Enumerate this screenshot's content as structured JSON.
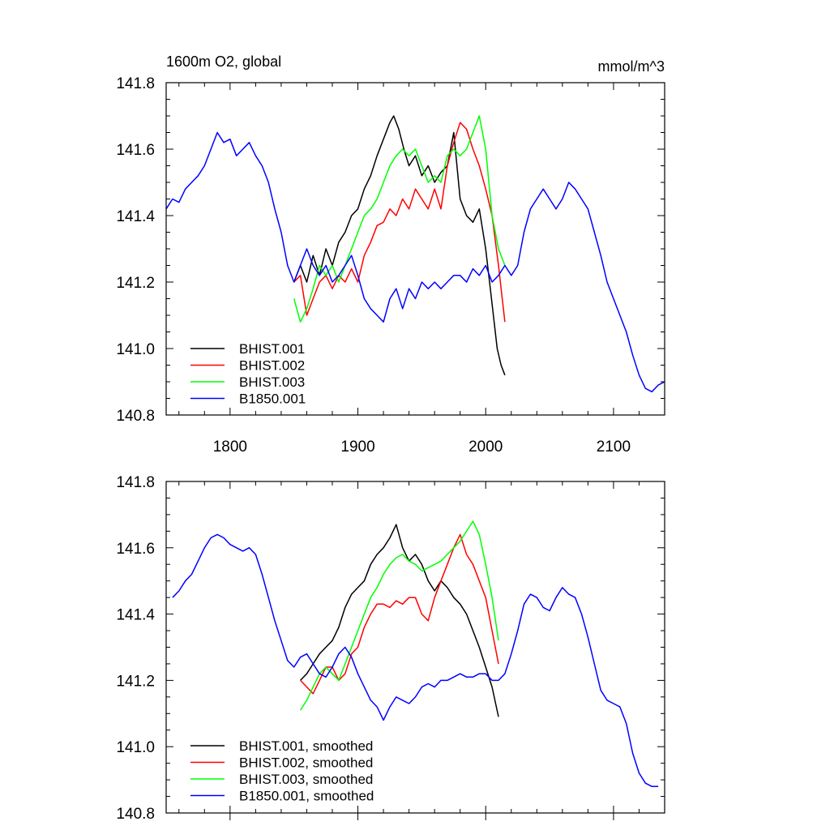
{
  "chart_data": [
    {
      "type": "line",
      "title": "1600m O2, global",
      "units": "mmol/m^3",
      "xlim": [
        1750,
        2140
      ],
      "ylim": [
        140.8,
        141.8
      ],
      "yticks": [
        "141.8",
        "141.6",
        "141.4",
        "141.2",
        "141.0",
        "140.8"
      ],
      "xticks": [
        "1800",
        "1900",
        "2000",
        "2100"
      ],
      "legend_position": "bottom-left",
      "series": [
        {
          "name": "BHIST.001",
          "color": "#000000",
          "x": [
            1850,
            1855,
            1860,
            1865,
            1870,
            1875,
            1880,
            1885,
            1890,
            1895,
            1900,
            1905,
            1910,
            1915,
            1920,
            1925,
            1928,
            1932,
            1936,
            1940,
            1945,
            1950,
            1955,
            1960,
            1965,
            1970,
            1975,
            1980,
            1985,
            1990,
            1995,
            2000,
            2003,
            2006,
            2009,
            2012,
            2015
          ],
          "y": [
            141.2,
            141.25,
            141.2,
            141.28,
            141.22,
            141.3,
            141.25,
            141.32,
            141.35,
            141.4,
            141.42,
            141.48,
            141.52,
            141.58,
            141.63,
            141.68,
            141.7,
            141.66,
            141.6,
            141.55,
            141.58,
            141.52,
            141.55,
            141.5,
            141.53,
            141.55,
            141.65,
            141.45,
            141.4,
            141.38,
            141.42,
            141.3,
            141.2,
            141.1,
            141.0,
            140.95,
            140.92
          ]
        },
        {
          "name": "BHIST.002",
          "color": "#ff0000",
          "x": [
            1850,
            1855,
            1860,
            1865,
            1870,
            1875,
            1880,
            1885,
            1890,
            1895,
            1900,
            1905,
            1910,
            1915,
            1920,
            1925,
            1930,
            1935,
            1940,
            1945,
            1950,
            1955,
            1960,
            1965,
            1970,
            1975,
            1980,
            1985,
            1990,
            1995,
            2000,
            2005,
            2010,
            2015
          ],
          "y": [
            141.2,
            141.22,
            141.1,
            141.15,
            141.2,
            141.22,
            141.18,
            141.22,
            141.2,
            141.24,
            141.2,
            141.28,
            141.32,
            141.37,
            141.38,
            141.42,
            141.4,
            141.45,
            141.42,
            141.48,
            141.45,
            141.42,
            141.48,
            141.42,
            141.55,
            141.62,
            141.68,
            141.66,
            141.6,
            141.55,
            141.48,
            141.4,
            141.25,
            141.08
          ]
        },
        {
          "name": "BHIST.003",
          "color": "#00ff00",
          "x": [
            1850,
            1855,
            1860,
            1865,
            1870,
            1875,
            1880,
            1885,
            1890,
            1895,
            1900,
            1905,
            1910,
            1915,
            1920,
            1925,
            1930,
            1935,
            1940,
            1945,
            1950,
            1955,
            1960,
            1965,
            1970,
            1975,
            1980,
            1985,
            1990,
            1995,
            2000,
            2005,
            2010,
            2015
          ],
          "y": [
            141.15,
            141.08,
            141.12,
            141.18,
            141.25,
            141.22,
            141.25,
            141.2,
            141.25,
            141.3,
            141.35,
            141.4,
            141.42,
            141.45,
            141.5,
            141.55,
            141.58,
            141.6,
            141.58,
            141.6,
            141.55,
            141.5,
            141.52,
            141.5,
            141.58,
            141.6,
            141.58,
            141.6,
            141.65,
            141.7,
            141.6,
            141.4,
            141.3,
            141.25
          ]
        },
        {
          "name": "B1850.001",
          "color": "#0000ff",
          "x": [
            1750,
            1755,
            1760,
            1765,
            1770,
            1775,
            1780,
            1785,
            1790,
            1795,
            1800,
            1805,
            1810,
            1815,
            1820,
            1825,
            1830,
            1835,
            1840,
            1845,
            1850,
            1855,
            1860,
            1865,
            1870,
            1875,
            1880,
            1885,
            1890,
            1895,
            1900,
            1905,
            1910,
            1915,
            1920,
            1925,
            1930,
            1935,
            1940,
            1945,
            1950,
            1955,
            1960,
            1965,
            1970,
            1975,
            1980,
            1985,
            1990,
            1995,
            2000,
            2005,
            2010,
            2015,
            2020,
            2025,
            2030,
            2035,
            2040,
            2045,
            2050,
            2055,
            2060,
            2065,
            2070,
            2075,
            2080,
            2085,
            2090,
            2095,
            2100,
            2105,
            2110,
            2115,
            2120,
            2125,
            2130,
            2135,
            2140
          ],
          "y": [
            141.42,
            141.45,
            141.44,
            141.48,
            141.5,
            141.52,
            141.55,
            141.6,
            141.65,
            141.62,
            141.63,
            141.58,
            141.6,
            141.62,
            141.58,
            141.55,
            141.5,
            141.42,
            141.35,
            141.25,
            141.2,
            141.25,
            141.3,
            141.25,
            141.22,
            141.25,
            141.2,
            141.22,
            141.25,
            141.28,
            141.22,
            141.15,
            141.12,
            141.1,
            141.08,
            141.15,
            141.18,
            141.12,
            141.18,
            141.15,
            141.2,
            141.18,
            141.2,
            141.18,
            141.2,
            141.22,
            141.22,
            141.2,
            141.24,
            141.22,
            141.25,
            141.2,
            141.22,
            141.25,
            141.22,
            141.25,
            141.35,
            141.42,
            141.45,
            141.48,
            141.45,
            141.42,
            141.45,
            141.5,
            141.48,
            141.45,
            141.42,
            141.35,
            141.28,
            141.2,
            141.15,
            141.1,
            141.05,
            140.98,
            140.92,
            140.88,
            140.87,
            140.89,
            140.9
          ]
        }
      ]
    },
    {
      "type": "line",
      "xlim": [
        1750,
        2140
      ],
      "ylim": [
        140.8,
        141.8
      ],
      "yticks": [
        "141.8",
        "141.6",
        "141.4",
        "141.2",
        "141.0",
        "140.8"
      ],
      "legend_position": "bottom-left",
      "series": [
        {
          "name": "BHIST.001, smoothed",
          "color": "#000000",
          "x": [
            1855,
            1860,
            1865,
            1870,
            1875,
            1880,
            1885,
            1890,
            1895,
            1900,
            1905,
            1910,
            1915,
            1920,
            1925,
            1930,
            1935,
            1940,
            1945,
            1950,
            1955,
            1960,
            1965,
            1970,
            1975,
            1980,
            1985,
            1990,
            1995,
            2000,
            2005,
            2010
          ],
          "y": [
            141.2,
            141.22,
            141.25,
            141.28,
            141.3,
            141.32,
            141.36,
            141.42,
            141.46,
            141.48,
            141.5,
            141.55,
            141.58,
            141.6,
            141.63,
            141.67,
            141.6,
            141.56,
            141.58,
            141.55,
            141.5,
            141.47,
            141.5,
            141.48,
            141.45,
            141.43,
            141.4,
            141.35,
            141.3,
            141.24,
            141.18,
            141.09
          ]
        },
        {
          "name": "BHIST.002, smoothed",
          "color": "#ff0000",
          "x": [
            1855,
            1860,
            1865,
            1870,
            1875,
            1880,
            1885,
            1890,
            1895,
            1900,
            1905,
            1910,
            1915,
            1920,
            1925,
            1930,
            1935,
            1940,
            1945,
            1950,
            1955,
            1960,
            1965,
            1970,
            1975,
            1980,
            1985,
            1990,
            1995,
            2000,
            2005,
            2010
          ],
          "y": [
            141.2,
            141.18,
            141.16,
            141.2,
            141.24,
            141.24,
            141.2,
            141.22,
            141.28,
            141.3,
            141.36,
            141.4,
            141.43,
            141.43,
            141.42,
            141.44,
            141.43,
            141.45,
            141.45,
            141.4,
            141.38,
            141.45,
            141.5,
            141.55,
            141.6,
            141.64,
            141.58,
            141.55,
            141.5,
            141.45,
            141.35,
            141.25
          ]
        },
        {
          "name": "BHIST.003, smoothed",
          "color": "#00ff00",
          "x": [
            1855,
            1860,
            1865,
            1870,
            1875,
            1880,
            1885,
            1890,
            1895,
            1900,
            1905,
            1910,
            1915,
            1920,
            1925,
            1930,
            1935,
            1940,
            1945,
            1950,
            1955,
            1960,
            1965,
            1970,
            1975,
            1980,
            1985,
            1990,
            1995,
            2000,
            2005,
            2010
          ],
          "y": [
            141.11,
            141.14,
            141.18,
            141.22,
            141.24,
            141.22,
            141.2,
            141.25,
            141.3,
            141.35,
            141.4,
            141.45,
            141.48,
            141.52,
            141.55,
            141.57,
            141.58,
            141.56,
            141.55,
            141.53,
            141.54,
            141.55,
            141.56,
            141.58,
            141.6,
            141.62,
            141.65,
            141.68,
            141.64,
            141.55,
            141.45,
            141.32
          ]
        },
        {
          "name": "B1850.001, smoothed",
          "color": "#0000ff",
          "x": [
            1755,
            1760,
            1765,
            1770,
            1775,
            1780,
            1785,
            1790,
            1795,
            1800,
            1805,
            1810,
            1815,
            1820,
            1825,
            1830,
            1835,
            1840,
            1845,
            1850,
            1855,
            1860,
            1865,
            1870,
            1875,
            1880,
            1885,
            1890,
            1895,
            1900,
            1905,
            1910,
            1915,
            1920,
            1925,
            1930,
            1935,
            1940,
            1945,
            1950,
            1955,
            1960,
            1965,
            1970,
            1975,
            1980,
            1985,
            1990,
            1995,
            2000,
            2005,
            2010,
            2015,
            2020,
            2025,
            2030,
            2035,
            2040,
            2045,
            2050,
            2055,
            2060,
            2065,
            2070,
            2075,
            2080,
            2085,
            2090,
            2095,
            2100,
            2105,
            2110,
            2115,
            2120,
            2125,
            2130,
            2135
          ],
          "y": [
            141.45,
            141.47,
            141.5,
            141.52,
            141.56,
            141.6,
            141.63,
            141.64,
            141.63,
            141.61,
            141.6,
            141.59,
            141.6,
            141.58,
            141.52,
            141.45,
            141.38,
            141.32,
            141.26,
            141.24,
            141.27,
            141.28,
            141.25,
            141.22,
            141.21,
            141.24,
            141.28,
            141.3,
            141.27,
            141.22,
            141.18,
            141.14,
            141.12,
            141.08,
            141.12,
            141.15,
            141.14,
            141.13,
            141.15,
            141.18,
            141.19,
            141.18,
            141.2,
            141.2,
            141.21,
            141.22,
            141.21,
            141.21,
            141.22,
            141.22,
            141.2,
            141.2,
            141.22,
            141.28,
            141.35,
            141.43,
            141.46,
            141.45,
            141.42,
            141.41,
            141.45,
            141.48,
            141.46,
            141.45,
            141.4,
            141.33,
            141.25,
            141.17,
            141.14,
            141.13,
            141.12,
            141.07,
            140.98,
            140.92,
            140.89,
            140.88,
            140.88
          ]
        }
      ]
    }
  ]
}
